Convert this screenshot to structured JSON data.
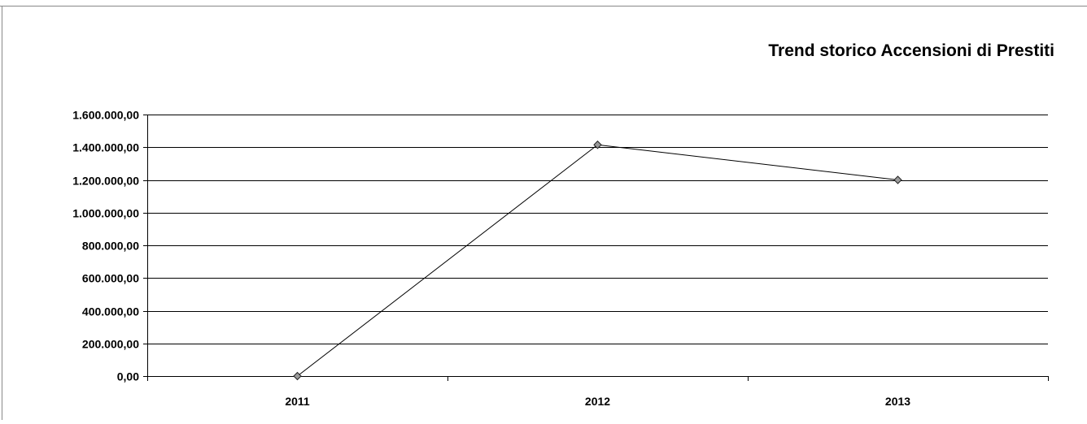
{
  "chart_data": {
    "type": "line",
    "title": "Trend storico  Accensioni di Prestiti",
    "xlabel": "",
    "ylabel": "",
    "categories": [
      "2011",
      "2012",
      "2013"
    ],
    "series": [
      {
        "values": [
          0,
          1415000,
          1200000
        ]
      }
    ],
    "ylim": [
      0,
      1600000
    ],
    "yticks": [
      0,
      200000,
      400000,
      600000,
      800000,
      1000000,
      1200000,
      1400000,
      1600000
    ],
    "ytick_labels": [
      "0,00",
      "200.000,00",
      "400.000,00",
      "600.000,00",
      "800.000,00",
      "1.000.000,00",
      "1.200.000,00",
      "1.400.000,00",
      "1.600.000,00"
    ],
    "grid": true,
    "legend": "none",
    "colors": {
      "line": "#000000",
      "marker": "#9a9a9a",
      "grid": "#000000"
    }
  }
}
